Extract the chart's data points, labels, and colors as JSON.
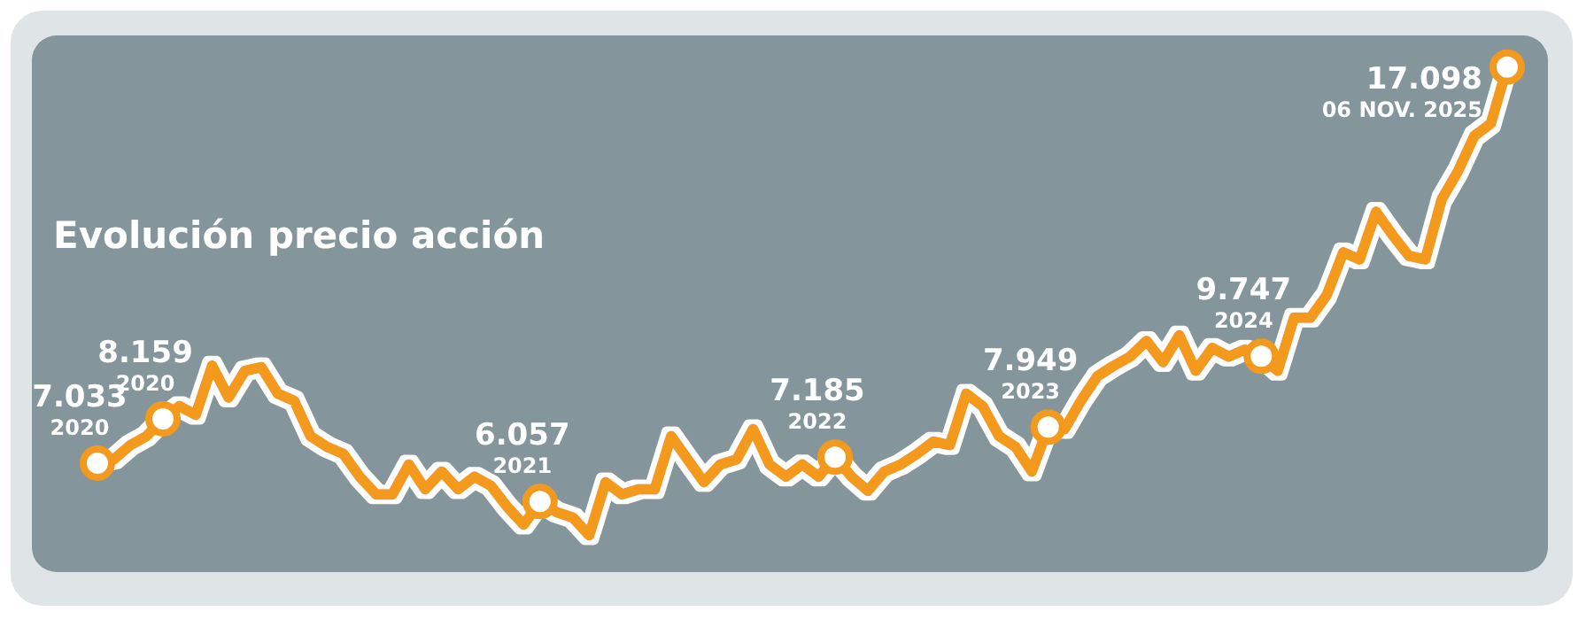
{
  "chart_data": {
    "type": "line",
    "title": "Evolución precio acción",
    "categories": [
      null,
      null,
      null,
      null,
      null,
      null,
      null,
      null,
      null,
      null,
      null,
      null,
      null,
      null,
      null,
      null,
      null,
      null,
      null,
      null,
      null,
      null,
      null,
      null,
      null,
      null,
      null,
      null,
      null,
      null,
      null,
      null,
      null,
      null,
      null,
      null,
      null,
      null,
      null,
      null,
      null,
      null,
      null,
      null,
      null,
      null,
      null,
      null,
      null,
      null,
      null,
      null,
      null,
      null,
      null,
      null,
      null,
      null,
      null,
      null,
      null,
      null,
      null,
      null,
      null,
      null,
      null,
      null,
      null,
      null,
      null,
      null,
      null,
      null,
      null,
      null,
      null,
      null,
      null,
      null,
      null,
      null,
      null,
      null,
      null,
      null,
      null
    ],
    "series": [
      {
        "color": "#f39a1e",
        "values": [
          7.033,
          7.13,
          7.49,
          7.72,
          8.159,
          8.48,
          8.26,
          9.51,
          8.7,
          9.38,
          9.47,
          8.8,
          8.62,
          7.72,
          7.45,
          7.27,
          6.69,
          6.24,
          6.24,
          7.0,
          6.37,
          6.82,
          6.37,
          6.69,
          6.46,
          5.92,
          5.47,
          6.057,
          5.79,
          5.65,
          5.2,
          6.55,
          6.24,
          6.37,
          6.37,
          7.72,
          7.13,
          6.55,
          7.0,
          7.13,
          7.9,
          7.0,
          6.69,
          7.0,
          6.69,
          7.185,
          6.69,
          6.33,
          6.82,
          7.0,
          7.27,
          7.58,
          7.49,
          8.8,
          8.48,
          7.72,
          7.45,
          6.82,
          7.949,
          7.9,
          8.62,
          9.24,
          9.51,
          9.74,
          10.14,
          9.6,
          10.28,
          9.38,
          9.96,
          9.74,
          9.92,
          9.747,
          9.38,
          10.73,
          10.73,
          11.31,
          12.39,
          12.21,
          13.42,
          12.83,
          12.3,
          12.21,
          13.73,
          14.45,
          15.35,
          15.66,
          17.098
        ],
        "value_labels": [
          "7.033\n2020",
          null,
          null,
          null,
          "8.159\n2020",
          null,
          null,
          null,
          null,
          null,
          null,
          null,
          null,
          null,
          null,
          null,
          null,
          null,
          null,
          null,
          null,
          null,
          null,
          null,
          null,
          null,
          null,
          "6.057\n2021",
          null,
          null,
          null,
          null,
          null,
          null,
          null,
          null,
          null,
          null,
          null,
          null,
          null,
          null,
          null,
          null,
          null,
          "7.185\n2022",
          null,
          null,
          null,
          null,
          null,
          null,
          null,
          null,
          null,
          null,
          null,
          null,
          "7.949\n2023",
          null,
          null,
          null,
          null,
          null,
          null,
          null,
          null,
          null,
          null,
          null,
          null,
          "9.747\n2024",
          null,
          null,
          null,
          null,
          null,
          null,
          null,
          null,
          null,
          null,
          null,
          null,
          null,
          null,
          "17.098\n06 NOV. 2025"
        ]
      }
    ],
    "ylim": [
      4.4,
      17.9
    ],
    "tick_labels": false
  }
}
